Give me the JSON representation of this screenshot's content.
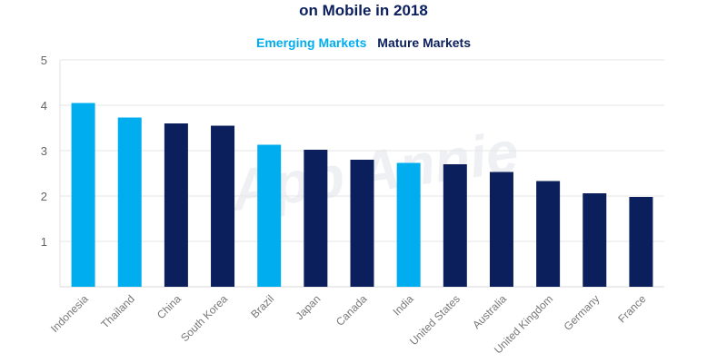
{
  "chart_data": {
    "type": "bar",
    "title": "on Mobile in 2018",
    "xlabel": "",
    "ylabel": "",
    "ylim": [
      0,
      5
    ],
    "yticks": [
      1,
      2,
      3,
      4,
      5
    ],
    "grid": true,
    "legend_placement": "top-center",
    "watermark": "App Annie",
    "legend": [
      {
        "name": "Emerging Markets",
        "color": "#00aeef"
      },
      {
        "name": "Mature Markets",
        "color": "#0b1f5c"
      }
    ],
    "categories": [
      "Indonesia",
      "Thailand",
      "China",
      "South Korea",
      "Brazil",
      "Japan",
      "Canada",
      "India",
      "United States",
      "Australia",
      "United Kingdom",
      "Germany",
      "France"
    ],
    "values": [
      4.05,
      3.73,
      3.6,
      3.55,
      3.13,
      3.02,
      2.8,
      2.73,
      2.7,
      2.53,
      2.33,
      2.06,
      1.98
    ],
    "groups": [
      "Emerging Markets",
      "Emerging Markets",
      "Mature Markets",
      "Mature Markets",
      "Emerging Markets",
      "Mature Markets",
      "Mature Markets",
      "Emerging Markets",
      "Mature Markets",
      "Mature Markets",
      "Mature Markets",
      "Mature Markets",
      "Mature Markets"
    ]
  }
}
